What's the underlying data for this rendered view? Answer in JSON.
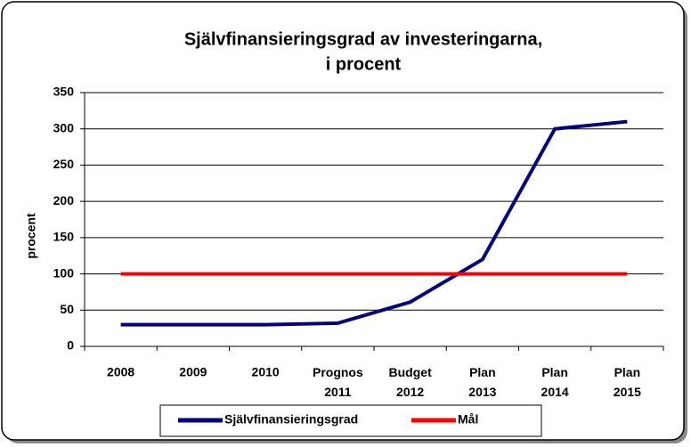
{
  "chart_data": {
    "type": "line",
    "title": [
      "Självfinansieringsgrad av investeringarna,",
      "i  procent"
    ],
    "y_label": "procent",
    "categories": [
      "2008",
      "2009",
      "2010",
      "Prognos 2011",
      "Budget 2012",
      "Plan 2013",
      "Plan 2014",
      "Plan 2015"
    ],
    "series": [
      {
        "name": "Självfinansieringsgrad",
        "color": "#000080",
        "values": [
          30,
          30,
          30,
          32,
          61,
          120,
          300,
          310
        ]
      },
      {
        "name": "Mål",
        "color": "#ff0000",
        "values": [
          100,
          100,
          100,
          100,
          100,
          100,
          100,
          100
        ]
      }
    ],
    "ylim": [
      0,
      350
    ],
    "yticks": [
      0,
      50,
      100,
      150,
      200,
      250,
      300,
      350
    ],
    "grid": true
  }
}
